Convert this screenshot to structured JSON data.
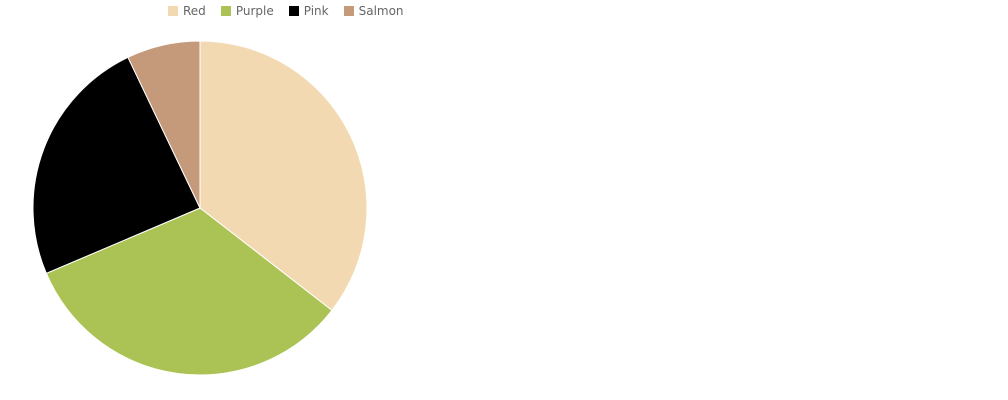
{
  "chart_data": {
    "type": "pie",
    "title": "",
    "legend_position": "top",
    "slices": [
      {
        "label": "Red",
        "value": 35.5,
        "color": "#f3d9b1"
      },
      {
        "label": "Purple",
        "value": 33.1,
        "color": "#abc355"
      },
      {
        "label": "Pink",
        "value": 24.3,
        "color": "#000000"
      },
      {
        "label": "Salmon",
        "value": 7.1,
        "color": "#c49a7b"
      }
    ]
  }
}
